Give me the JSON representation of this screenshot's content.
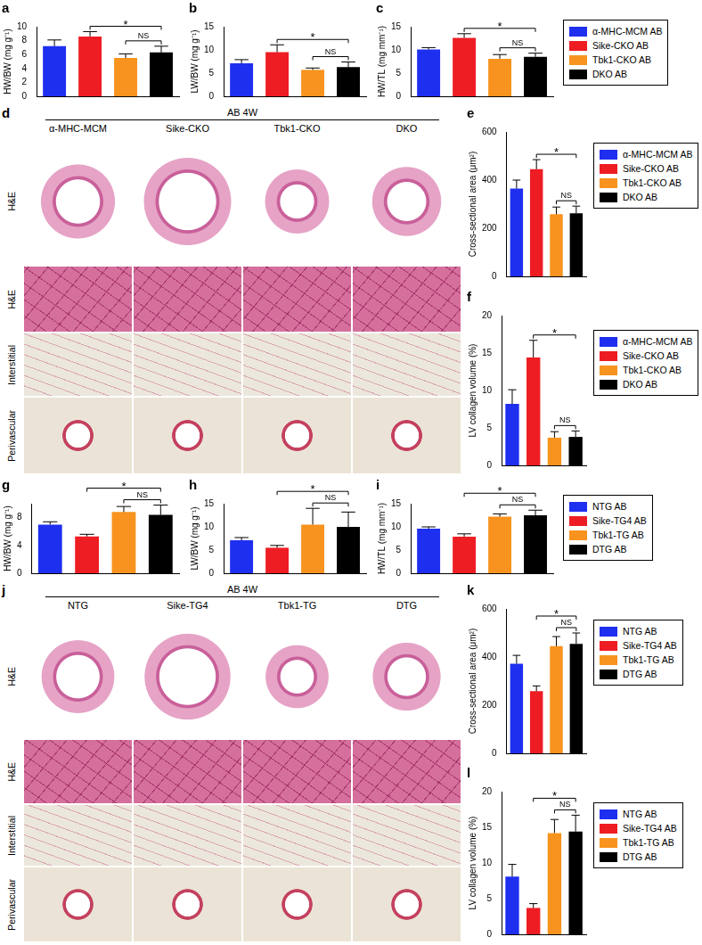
{
  "chart_data": [
    {
      "panel": "a",
      "type": "bar",
      "ylabel": "HW/BW (mg g⁻¹)",
      "categories": [
        "α-MHC-MCM AB",
        "Sike-CKO AB",
        "Tbk1-CKO AB",
        "DKO AB"
      ],
      "values": [
        7.2,
        8.6,
        5.5,
        6.3
      ],
      "errors": [
        0.9,
        0.7,
        0.6,
        0.9
      ],
      "colors": [
        "#1f2ff0",
        "#ee1d23",
        "#f7931e",
        "#000000"
      ],
      "ylim": [
        0,
        10
      ],
      "yticks": [
        0,
        2,
        4,
        6,
        8,
        10
      ],
      "grid": false,
      "tick_labels": "y",
      "annotations": [
        {
          "from": "Sike-CKO AB",
          "to": "DKO AB",
          "label": "*"
        },
        {
          "from": "Tbk1-CKO AB",
          "to": "DKO AB",
          "label": "NS"
        }
      ]
    },
    {
      "panel": "b",
      "type": "bar",
      "ylabel": "LW/BW (mg g⁻¹)",
      "categories": [
        "α-MHC-MCM AB",
        "Sike-CKO AB",
        "Tbk1-CKO AB",
        "DKO AB"
      ],
      "values": [
        7.1,
        9.5,
        5.7,
        6.3
      ],
      "errors": [
        0.8,
        1.6,
        0.4,
        1.1
      ],
      "colors": [
        "#1f2ff0",
        "#ee1d23",
        "#f7931e",
        "#000000"
      ],
      "ylim": [
        0,
        15
      ],
      "yticks": [
        0,
        5,
        10,
        15
      ],
      "grid": false,
      "tick_labels": "y",
      "annotations": [
        {
          "from": "Sike-CKO AB",
          "to": "DKO AB",
          "label": "*"
        },
        {
          "from": "Tbk1-CKO AB",
          "to": "DKO AB",
          "label": "NS"
        }
      ]
    },
    {
      "panel": "c",
      "type": "bar",
      "ylabel": "HW/TL (mg mm⁻¹)",
      "categories": [
        "α-MHC-MCM AB",
        "Sike-CKO AB",
        "Tbk1-CKO AB",
        "DKO AB"
      ],
      "values": [
        10.1,
        12.6,
        8.1,
        8.5
      ],
      "errors": [
        0.4,
        0.9,
        0.9,
        0.8
      ],
      "colors": [
        "#1f2ff0",
        "#ee1d23",
        "#f7931e",
        "#000000"
      ],
      "ylim": [
        0,
        15
      ],
      "yticks": [
        0,
        5,
        10,
        15
      ],
      "grid": false,
      "tick_labels": "y",
      "legend": "right",
      "annotations": [
        {
          "from": "Sike-CKO AB",
          "to": "DKO AB",
          "label": "*"
        },
        {
          "from": "Tbk1-CKO AB",
          "to": "DKO AB",
          "label": "NS"
        }
      ]
    },
    {
      "panel": "e",
      "type": "bar",
      "ylabel": "Cross-sectional area (μm²)",
      "categories": [
        "α-MHC-MCM AB",
        "Sike-CKO AB",
        "Tbk1-CKO AB",
        "DKO AB"
      ],
      "values": [
        365,
        445,
        258,
        262
      ],
      "errors": [
        35,
        40,
        30,
        30
      ],
      "colors": [
        "#1f2ff0",
        "#ee1d23",
        "#f7931e",
        "#000000"
      ],
      "ylim": [
        0,
        600
      ],
      "yticks": [
        0,
        200,
        400,
        600
      ],
      "grid": false,
      "tick_labels": "y",
      "legend": "right",
      "annotations": [
        {
          "from": "Sike-CKO AB",
          "to": "DKO AB",
          "label": "*"
        },
        {
          "from": "Tbk1-CKO AB",
          "to": "DKO AB",
          "label": "NS"
        }
      ]
    },
    {
      "panel": "f",
      "type": "bar",
      "ylabel": "LV collagen volume (%)",
      "categories": [
        "α-MHC-MCM AB",
        "Sike-CKO AB",
        "Tbk1-CKO AB",
        "DKO AB"
      ],
      "values": [
        8.2,
        14.4,
        3.7,
        3.8
      ],
      "errors": [
        1.9,
        2.3,
        0.8,
        0.8
      ],
      "colors": [
        "#1f2ff0",
        "#ee1d23",
        "#f7931e",
        "#000000"
      ],
      "ylim": [
        0,
        20
      ],
      "yticks": [
        0,
        5,
        10,
        15,
        20
      ],
      "grid": false,
      "tick_labels": "y",
      "legend": "right",
      "annotations": [
        {
          "from": "Sike-CKO AB",
          "to": "DKO AB",
          "label": "*"
        },
        {
          "from": "Tbk1-CKO AB",
          "to": "DKO AB",
          "label": "NS"
        }
      ]
    },
    {
      "panel": "g",
      "type": "bar",
      "ylabel": "HW/BW (mg g⁻¹)",
      "categories": [
        "NTG AB",
        "Sike-TG4 AB",
        "Tbk1-TG AB",
        "DTG AB"
      ],
      "values": [
        7.0,
        5.3,
        8.8,
        8.4
      ],
      "errors": [
        0.4,
        0.3,
        0.8,
        1.4
      ],
      "colors": [
        "#1f2ff0",
        "#ee1d23",
        "#f7931e",
        "#000000"
      ],
      "ylim": [
        0,
        10
      ],
      "yticks": [
        0,
        4,
        8
      ],
      "grid": false,
      "tick_labels": "y",
      "annotations": [
        {
          "from": "Sike-TG4 AB",
          "to": "DTG AB",
          "label": "*"
        },
        {
          "from": "Tbk1-TG AB",
          "to": "DTG AB",
          "label": "NS"
        }
      ]
    },
    {
      "panel": "h",
      "type": "bar",
      "ylabel": "LW/BW (mg g⁻¹)",
      "categories": [
        "NTG AB",
        "Sike-TG4 AB",
        "Tbk1-TG AB",
        "DTG AB"
      ],
      "values": [
        7.1,
        5.5,
        10.5,
        10.0
      ],
      "errors": [
        0.6,
        0.5,
        3.5,
        3.2
      ],
      "colors": [
        "#1f2ff0",
        "#ee1d23",
        "#f7931e",
        "#000000"
      ],
      "ylim": [
        0,
        15
      ],
      "yticks": [
        0,
        5,
        10,
        15
      ],
      "grid": false,
      "tick_labels": "y",
      "annotations": [
        {
          "from": "Sike-TG4 AB",
          "to": "DTG AB",
          "label": "*"
        },
        {
          "from": "Tbk1-TG AB",
          "to": "DTG AB",
          "label": "NS"
        }
      ]
    },
    {
      "panel": "i",
      "type": "bar",
      "ylabel": "HW/TL (mg mm⁻¹)",
      "categories": [
        "NTG AB",
        "Sike-TG4 AB",
        "Tbk1-TG AB",
        "DTG AB"
      ],
      "values": [
        9.6,
        7.9,
        12.2,
        12.5
      ],
      "errors": [
        0.4,
        0.6,
        0.6,
        1.1
      ],
      "colors": [
        "#1f2ff0",
        "#ee1d23",
        "#f7931e",
        "#000000"
      ],
      "ylim": [
        0,
        15
      ],
      "yticks": [
        0,
        5,
        10,
        15
      ],
      "grid": false,
      "tick_labels": "y",
      "legend": "right",
      "annotations": [
        {
          "from": "Sike-TG4 AB",
          "to": "DTG AB",
          "label": "*"
        },
        {
          "from": "Tbk1-TG AB",
          "to": "DTG AB",
          "label": "NS"
        }
      ]
    },
    {
      "panel": "k",
      "type": "bar",
      "ylabel": "Cross-sectional area (μm²)",
      "categories": [
        "NTG AB",
        "Sike-TG4 AB",
        "Tbk1-TG AB",
        "DTG AB"
      ],
      "values": [
        372,
        258,
        445,
        455
      ],
      "errors": [
        35,
        22,
        40,
        45
      ],
      "colors": [
        "#1f2ff0",
        "#ee1d23",
        "#f7931e",
        "#000000"
      ],
      "ylim": [
        0,
        600
      ],
      "yticks": [
        0,
        200,
        400,
        600
      ],
      "grid": false,
      "tick_labels": "y",
      "legend": "right",
      "annotations": [
        {
          "from": "Sike-TG4 AB",
          "to": "DTG AB",
          "label": "*"
        },
        {
          "from": "Tbk1-TG AB",
          "to": "DTG AB",
          "label": "NS"
        }
      ]
    },
    {
      "panel": "l",
      "type": "bar",
      "ylabel": "LV collagen volume (%)",
      "categories": [
        "NTG AB",
        "Sike-TG4 AB",
        "Tbk1-TG AB",
        "DTG AB"
      ],
      "values": [
        8.1,
        3.7,
        14.2,
        14.4
      ],
      "errors": [
        1.7,
        0.6,
        1.9,
        2.3
      ],
      "colors": [
        "#1f2ff0",
        "#ee1d23",
        "#f7931e",
        "#000000"
      ],
      "ylim": [
        0,
        20
      ],
      "yticks": [
        0,
        5,
        10,
        15,
        20
      ],
      "grid": false,
      "tick_labels": "y",
      "legend": "right",
      "annotations": [
        {
          "from": "Sike-TG4 AB",
          "to": "DTG AB",
          "label": "*"
        },
        {
          "from": "Tbk1-TG AB",
          "to": "DTG AB",
          "label": "NS"
        }
      ]
    }
  ],
  "image_panels": [
    {
      "panel": "d",
      "title": "AB 4W",
      "columns": [
        "α-MHC-MCM",
        "Sike-CKO",
        "Tbk1-CKO",
        "DKO"
      ],
      "rows": [
        "H&E",
        "H&E",
        "Interstitial",
        "Perivascular"
      ]
    },
    {
      "panel": "j",
      "title": "AB 4W",
      "columns": [
        "NTG",
        "Sike-TG4",
        "Tbk1-TG",
        "DTG"
      ],
      "rows": [
        "H&E",
        "H&E",
        "Interstitial",
        "Perivascular"
      ]
    }
  ]
}
